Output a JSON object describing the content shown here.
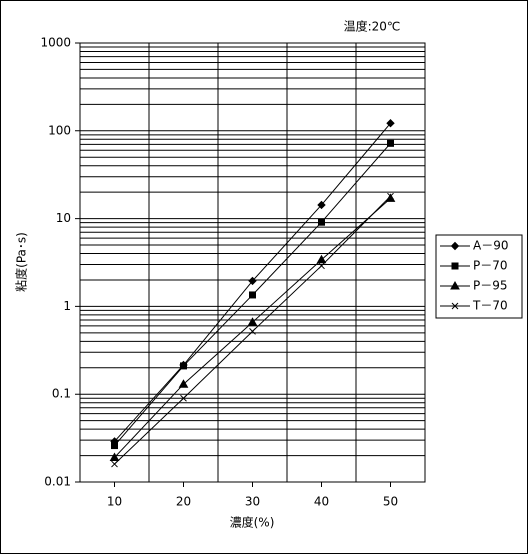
{
  "chart_data": {
    "type": "line",
    "annotation": "温度:20℃",
    "xlabel": "濃度(%)",
    "ylabel": "粘度(Pa･s)",
    "x": [
      10,
      20,
      30,
      40,
      50
    ],
    "xlim": [
      5,
      55
    ],
    "xticks": [
      10,
      20,
      30,
      40,
      50
    ],
    "ylog": true,
    "ylim": [
      0.01,
      1000
    ],
    "yticks": [
      0.01,
      0.1,
      1,
      10,
      100,
      1000
    ],
    "grid": true,
    "legend": "right",
    "series": [
      {
        "name": "A－90",
        "color": "#000000",
        "marker": "diamond",
        "values": [
          0.029,
          0.215,
          1.95,
          14.3,
          122
        ]
      },
      {
        "name": "P－70",
        "color": "#000000",
        "marker": "square",
        "values": [
          0.026,
          0.21,
          1.35,
          9.1,
          72
        ]
      },
      {
        "name": "P－95",
        "color": "#000000",
        "marker": "triangle",
        "values": [
          0.019,
          0.13,
          0.66,
          3.4,
          17
        ]
      },
      {
        "name": "T－70",
        "color": "#000000",
        "marker": "x",
        "values": [
          0.016,
          0.09,
          0.52,
          2.9,
          18
        ]
      }
    ]
  }
}
